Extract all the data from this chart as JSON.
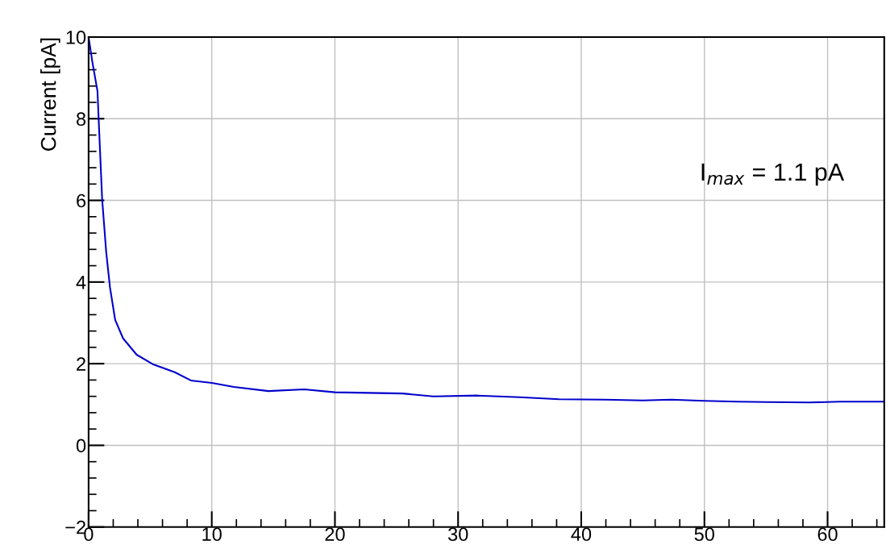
{
  "chart_data": {
    "type": "line",
    "ylabel": "Current [pA]",
    "annotations": [
      "I$_{max}$ = 1.1 pA"
    ],
    "x": [
      0,
      0.3,
      0.72,
      0.86,
      1.1,
      1.43,
      1.74,
      2.16,
      2.8,
      3.9,
      5.2,
      7.0,
      8.3,
      10,
      11.8,
      14.6,
      17.5,
      20,
      25.5,
      28,
      31.6,
      35,
      38.2,
      41.8,
      45,
      47.3,
      50,
      52.7,
      55,
      58.5,
      61,
      64.6
    ],
    "series": [
      {
        "color": "#0000cc",
        "values": [
          10.0,
          9.4,
          8.68,
          7.69,
          6.03,
          4.73,
          3.86,
          3.07,
          2.62,
          2.22,
          1.99,
          1.79,
          1.59,
          1.53,
          1.43,
          1.33,
          1.37,
          1.3,
          1.27,
          1.2,
          1.22,
          1.18,
          1.13,
          1.12,
          1.1,
          1.12,
          1.09,
          1.07,
          1.06,
          1.05,
          1.07,
          1.07
        ]
      }
    ],
    "xlim": [
      0,
      64.6
    ],
    "xticks": [
      0,
      10,
      20,
      30,
      40,
      50,
      60
    ],
    "ylim": [
      -2,
      10
    ],
    "yticks": [
      {
        "value": -2,
        "label": "−2"
      },
      0,
      2,
      4,
      6,
      8,
      10
    ],
    "grid": true,
    "legend": false,
    "marker": "none",
    "line_style": "solid"
  }
}
